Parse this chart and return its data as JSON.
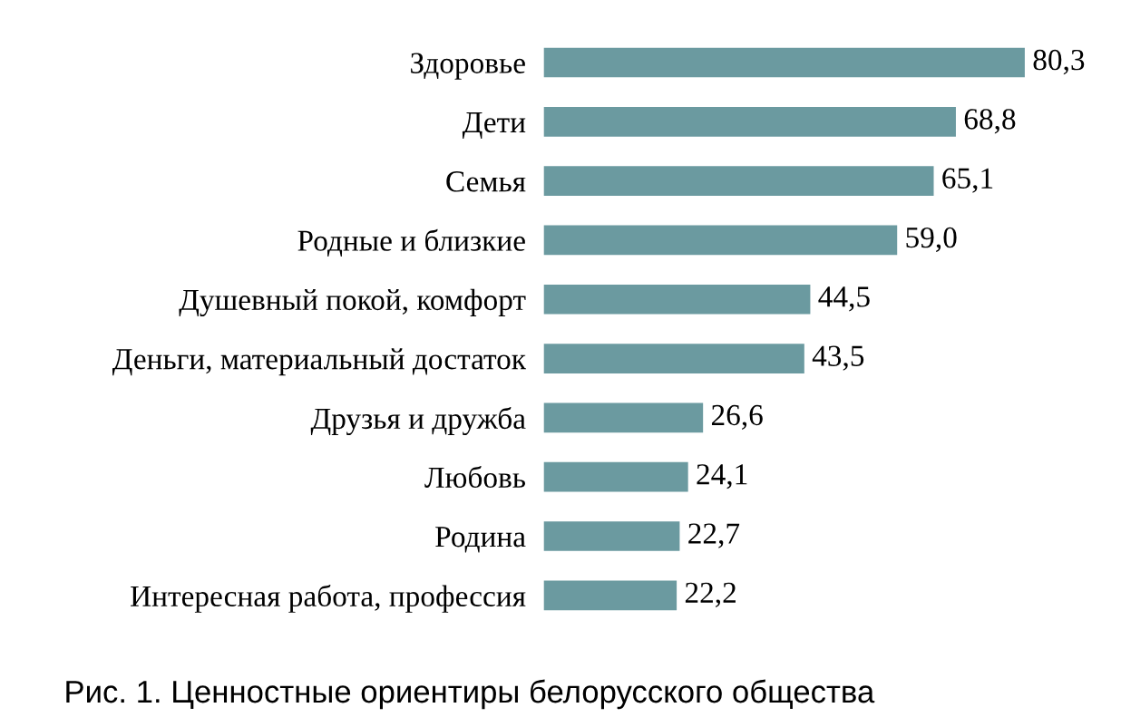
{
  "chart_data": {
    "type": "bar",
    "orientation": "horizontal",
    "categories": [
      "Здоровье",
      "Дети",
      "Семья",
      "Родные и близкие",
      "Душевный покой, комфорт",
      "Деньги, материальный достаток",
      "Друзья и дружба",
      "Любовь",
      "Родина",
      "Интересная работа, профессия"
    ],
    "values": [
      80.3,
      68.8,
      65.1,
      59.0,
      44.5,
      43.5,
      26.6,
      24.1,
      22.7,
      22.2
    ],
    "value_labels": [
      "80,3",
      "68,8",
      "65,1",
      "59,0",
      "44,5",
      "43,5",
      "26,6",
      "24,1",
      "22,7",
      "22,2"
    ],
    "color": "#6b9aa0",
    "grid": false,
    "legend": false,
    "annotations": [
      "Рис. 1. Ценностные ориентиры белорусского общества"
    ]
  }
}
